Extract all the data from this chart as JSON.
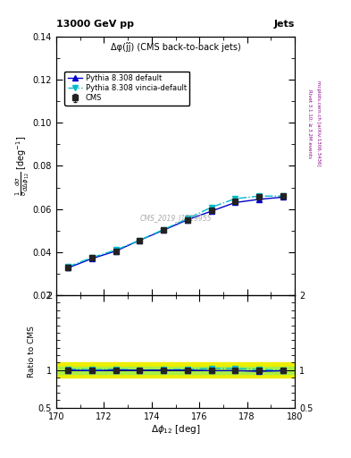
{
  "title_top": "13000 GeV pp",
  "title_right": "Jets",
  "plot_title": "Δφ(ĵĵ) (CMS back-to-back jets)",
  "ylabel_main": "$\\frac{1}{\\sigma}\\frac{d\\sigma}{d\\Delta\\phi_{12}}$ [deg$^{-1}$]",
  "ylabel_ratio": "Ratio to CMS",
  "xlabel": "$\\Delta\\phi_{12}$ [deg]",
  "watermark": "CMS_2019_I1719955",
  "right_label": "mcplots.cern.ch [arXiv:1306.3436]",
  "rivet_label": "Rivet 3.1.10; ≥ 3.2M events",
  "xlim": [
    170,
    180
  ],
  "ylim_main": [
    0.02,
    0.14
  ],
  "ylim_ratio": [
    0.5,
    2.0
  ],
  "cms_x": [
    170.5,
    171.5,
    172.5,
    173.5,
    174.5,
    175.5,
    176.5,
    177.5,
    178.5,
    179.5
  ],
  "cms_y": [
    0.0327,
    0.0373,
    0.0405,
    0.0455,
    0.0502,
    0.055,
    0.0594,
    0.0634,
    0.0655,
    0.066
  ],
  "cms_yerr": [
    0.001,
    0.0008,
    0.0007,
    0.0007,
    0.0007,
    0.0007,
    0.0007,
    0.0007,
    0.0007,
    0.0007
  ],
  "pythia_default_x": [
    170.5,
    171.5,
    172.5,
    173.5,
    174.5,
    175.5,
    176.5,
    177.5,
    178.5,
    179.5
  ],
  "pythia_default_y": [
    0.0327,
    0.037,
    0.0405,
    0.0455,
    0.0502,
    0.055,
    0.059,
    0.063,
    0.0645,
    0.0655
  ],
  "pythia_vincia_x": [
    170.5,
    171.5,
    172.5,
    173.5,
    174.5,
    175.5,
    176.5,
    177.5,
    178.5,
    179.5
  ],
  "pythia_vincia_y": [
    0.0332,
    0.0375,
    0.041,
    0.0455,
    0.0505,
    0.0555,
    0.0608,
    0.0648,
    0.066,
    0.066
  ],
  "ratio_pythia_default": [
    1.0,
    0.992,
    1.0,
    1.0,
    1.0,
    1.0,
    0.993,
    0.994,
    0.984,
    0.992
  ],
  "ratio_pythia_vincia": [
    1.015,
    1.005,
    1.012,
    1.0,
    1.006,
    1.009,
    1.024,
    1.022,
    1.008,
    1.0
  ],
  "cms_color": "#222222",
  "pythia_default_color": "#0000cc",
  "pythia_vincia_color": "#00bbcc",
  "band_color_green": "#aaee44",
  "band_color_yellow": "#eeee00",
  "band_green_half": 0.05,
  "band_yellow_half": 0.1
}
